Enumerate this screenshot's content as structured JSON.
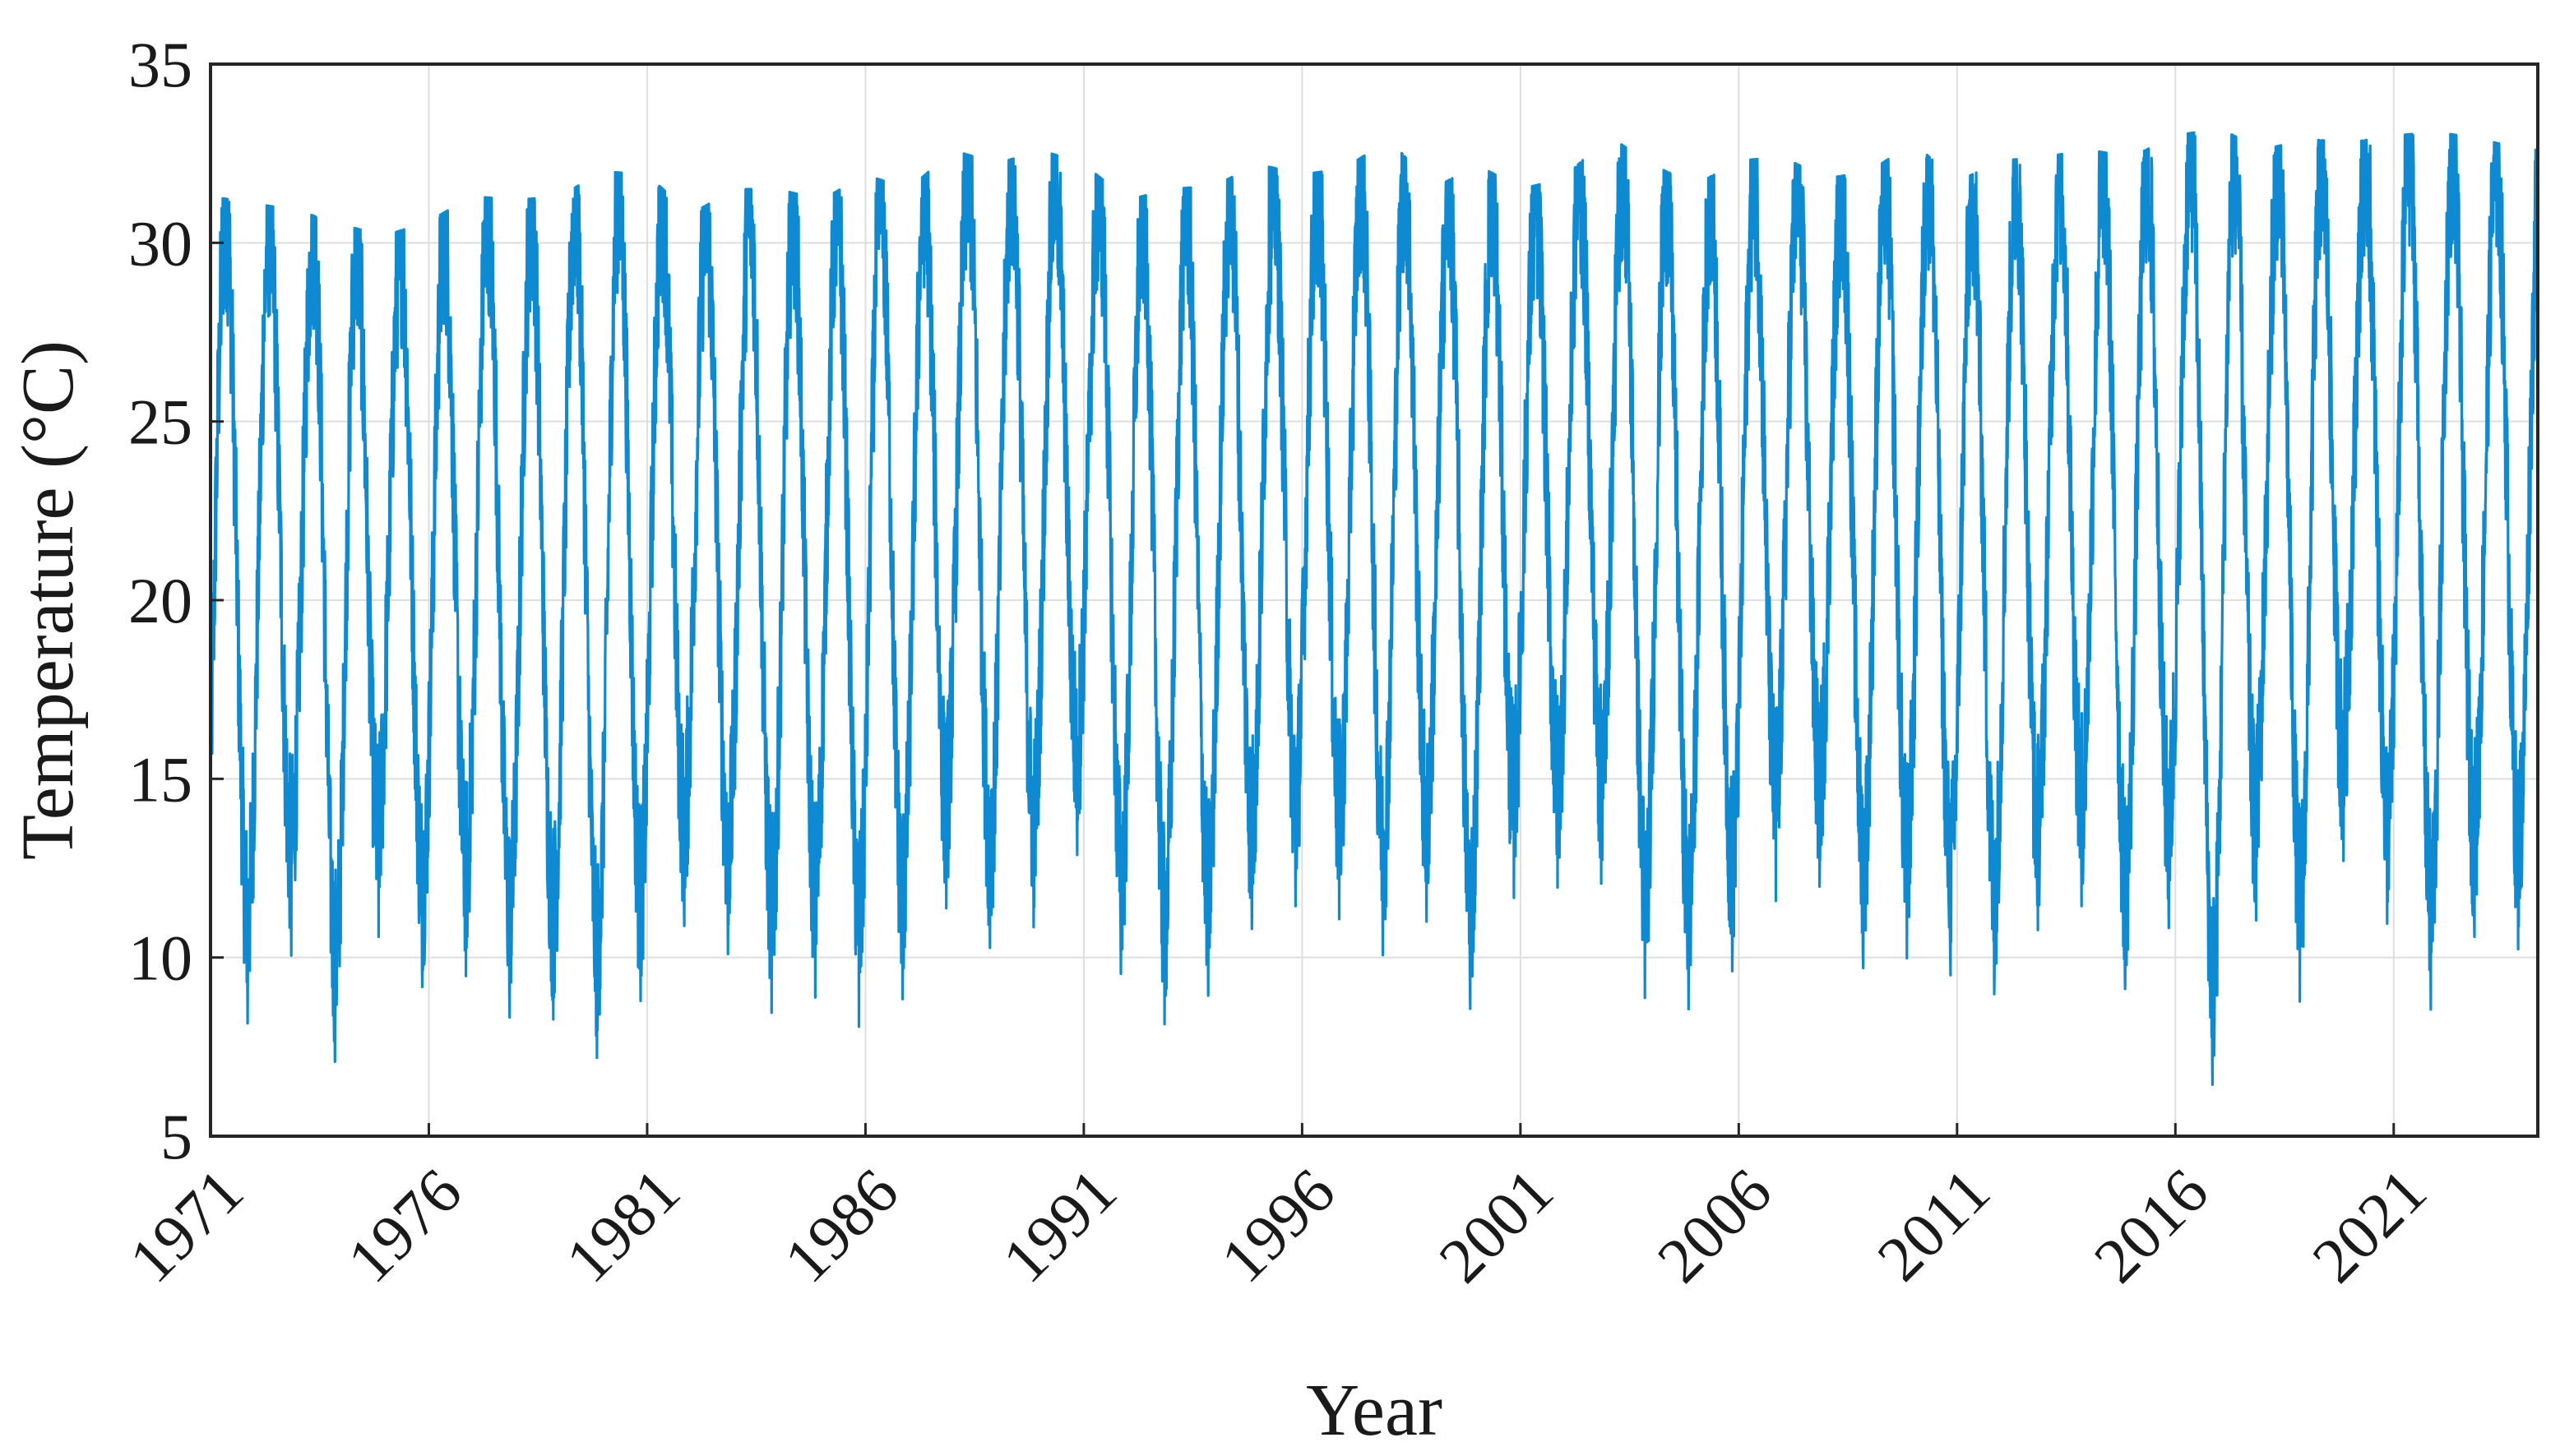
{
  "chart_data": {
    "type": "line",
    "title": "",
    "xlabel": "Year",
    "ylabel": "Temperature (°C)",
    "xlim": [
      1971,
      2024.3
    ],
    "ylim": [
      5,
      35
    ],
    "grid": true,
    "legend": "none",
    "x_ticks": [
      "1971",
      "1976",
      "1981",
      "1986",
      "1991",
      "1996",
      "2001",
      "2006",
      "2011",
      "2016",
      "2021"
    ],
    "y_ticks": [
      "5",
      "10",
      "15",
      "20",
      "25",
      "30",
      "35"
    ],
    "line_color": "#0d8ad1",
    "series": [
      {
        "x": [
          1971,
          1972,
          1973,
          1974,
          1975,
          1976,
          1977,
          1978,
          1979,
          1980,
          1981,
          1982,
          1983,
          1984,
          1985,
          1986,
          1987,
          1988,
          1989,
          1990,
          1991,
          1992,
          1993,
          1994,
          1995,
          1996,
          1997,
          1998,
          1999,
          2000,
          2001,
          2002,
          2003,
          2004,
          2005,
          2006,
          2007,
          2008,
          2009,
          2010,
          2011,
          2012,
          2013,
          2014,
          2015,
          2016,
          2017,
          2018,
          2019,
          2020,
          2021,
          2022,
          2023,
          2024
        ],
        "annual_max": [
          31.3,
          31.1,
          30.9,
          30.5,
          30.2,
          30.6,
          31.3,
          31.2,
          31.3,
          32.0,
          31.9,
          30.8,
          31.5,
          31.5,
          31.2,
          31.9,
          31.5,
          32.6,
          32.2,
          32.6,
          32.2,
          31.2,
          31.5,
          31.6,
          32.2,
          31.9,
          32.1,
          32.9,
          31.5,
          32.2,
          31.5,
          31.8,
          33.0,
          32.2,
          31.6,
          32.3,
          32.4,
          31.8,
          32.0,
          32.8,
          31.7,
          32.3,
          32.4,
          32.6,
          32.4,
          33.0,
          33.2,
          32.6,
          32.9,
          32.8,
          33.0,
          33.1,
          32.9,
          32.6
        ],
        "annual_min": [
          8.5,
          8.1,
          10.4,
          6.5,
          11.3,
          8.8,
          9.6,
          8.1,
          8.3,
          7.0,
          9.1,
          11.2,
          9.9,
          8.2,
          9.0,
          7.9,
          9.0,
          11.8,
          10.0,
          11.0,
          13.2,
          8.9,
          8.0,
          9.1,
          11.1,
          11.5,
          11.0,
          9.9,
          11.2,
          8.1,
          12.3,
          11.9,
          12.1,
          8.3,
          8.6,
          9.8,
          11.9,
          12.0,
          9.3,
          10.1,
          9.4,
          8.9,
          11.1,
          11.5,
          8.7,
          11.2,
          5.6,
          12.0,
          8.2,
          13.5,
          10.5,
          8.2,
          11.0,
          10.1
        ]
      }
    ]
  }
}
